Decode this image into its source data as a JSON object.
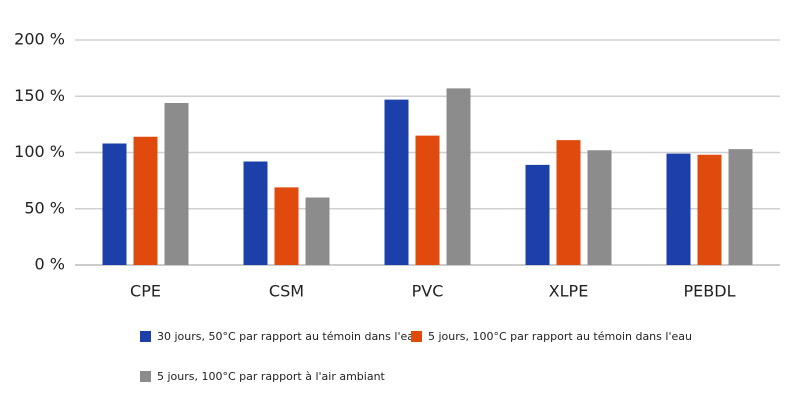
{
  "chart_data": {
    "type": "bar",
    "categories": [
      "CPE",
      "CSM",
      "PVC",
      "XLPE",
      "PEBDL"
    ],
    "series": [
      {
        "name": "30 jours, 50°C par rapport au témoin dans l'eau",
        "color": "#1c3faa",
        "values": [
          108,
          92,
          147,
          89,
          99
        ]
      },
      {
        "name": "5 jours, 100°C par rapport au témoin dans l'eau",
        "color": "#e04a0c",
        "values": [
          114,
          69,
          115,
          111,
          98
        ]
      },
      {
        "name": "5 jours, 100°C par rapport à l'air ambiant",
        "color": "#8c8c8c",
        "values": [
          144,
          60,
          157,
          102,
          103
        ]
      }
    ],
    "ylim": [
      0,
      200
    ],
    "yticks": [
      {
        "value": 0,
        "label": "0 %"
      },
      {
        "value": 50,
        "label": "50 %"
      },
      {
        "value": 100,
        "label": "100 %"
      },
      {
        "value": 150,
        "label": "150 %"
      },
      {
        "value": 200,
        "label": "200 %"
      }
    ],
    "grid": true
  }
}
